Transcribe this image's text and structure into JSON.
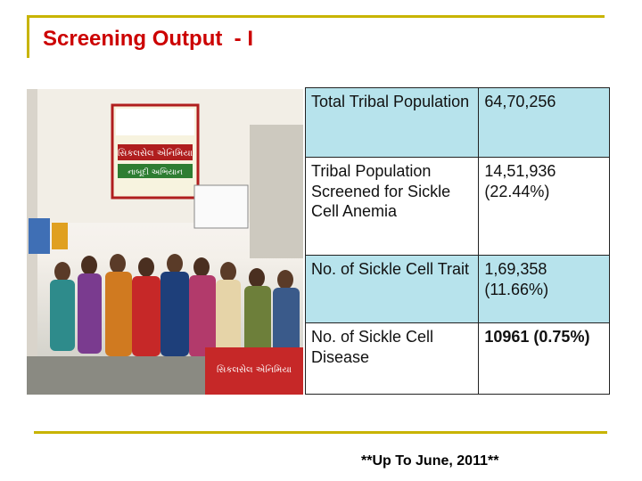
{
  "title": "Screening Output  - I",
  "photo": {
    "banner_lines": [
      "સિકલસેલ એનિમિયા",
      "નાબૂદી અભિયાન"
    ],
    "table_banner_text": "સિકલસેલ એનિમિયા"
  },
  "stats": [
    {
      "label": "Total Tribal Population",
      "value": "64,70,256"
    },
    {
      "label": "Tribal Population Screened for Sickle Cell Anemia",
      "value": "14,51,936 (22.44%)"
    },
    {
      "label": "No. of Sickle Cell Trait",
      "value": "1,69,358 (11.66%)"
    },
    {
      "label": "No. of Sickle Cell Disease",
      "value": "10961 (0.75%)"
    }
  ],
  "footer_note": "**Up To June, 2011**",
  "colors": {
    "title": "#cc0000",
    "rule": "#c8b400",
    "highlight_row": "#b7e3ec"
  }
}
